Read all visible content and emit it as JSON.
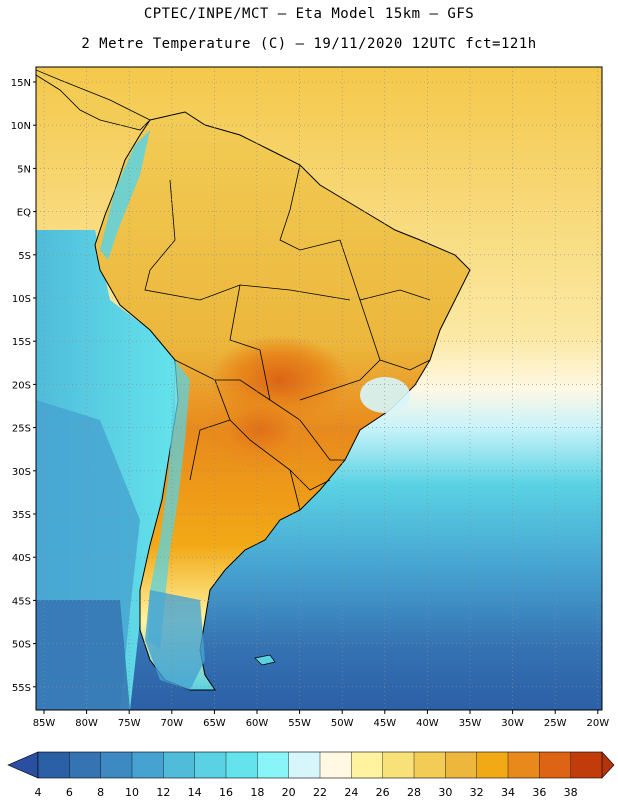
{
  "header": {
    "line1": "CPTEC/INPE/MCT –  Eta Model 15km – GFS",
    "line2": "2 Metre Temperature (C) – 19/11/2020 12UTC fct=121h"
  },
  "map": {
    "lat_labels": [
      "15N",
      "10N",
      "5N",
      "EQ",
      "5S",
      "10S",
      "15S",
      "20S",
      "25S",
      "30S",
      "35S",
      "40S",
      "45S",
      "50S",
      "55S"
    ],
    "lon_labels": [
      "85W",
      "80W",
      "75W",
      "70W",
      "65W",
      "60W",
      "55W",
      "50W",
      "45W",
      "40W",
      "35W",
      "30W",
      "25W",
      "20W"
    ],
    "background_ocean_color": "#f4c84a",
    "land_outline_color": "#000000"
  },
  "colorbar": {
    "labels": [
      "4",
      "6",
      "8",
      "10",
      "12",
      "14",
      "16",
      "18",
      "20",
      "22",
      "24",
      "26",
      "28",
      "30",
      "32",
      "34",
      "36",
      "38"
    ],
    "colors": [
      "#2b5fa6",
      "#3573b3",
      "#3d8ac3",
      "#46a3d1",
      "#50bcda",
      "#5ad2e3",
      "#64e3ec",
      "#8af5f8",
      "#d6f6fb",
      "#fff8e3",
      "#fff3a0",
      "#f9e17a",
      "#f2cc55",
      "#ecb73c",
      "#f2a916",
      "#e8891c",
      "#dc6414",
      "#c23b0a"
    ],
    "end_low_color": "#2a4fa0",
    "end_high_color": "#b3330a"
  }
}
